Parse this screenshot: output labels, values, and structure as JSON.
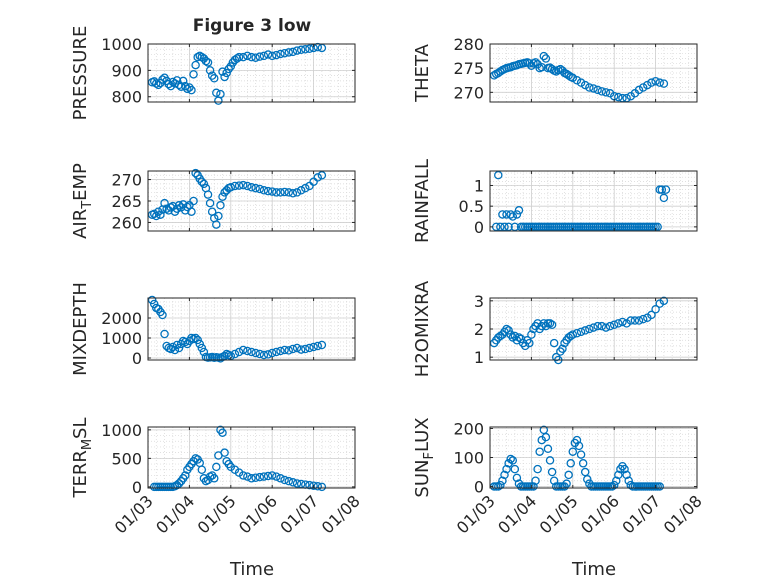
{
  "figure": {
    "title": "Figure 3 low",
    "xlabel": "Time",
    "xtick_labels": [
      "01/03",
      "01/04",
      "01/05",
      "01/06",
      "01/07",
      "01/08"
    ],
    "marker_color": "#0072BD"
  },
  "chart_data": [
    {
      "type": "scatter",
      "ylabel": "PRESSURE",
      "ylim": [
        780,
        1000
      ],
      "yticks": [
        800,
        900,
        1000
      ],
      "xlim": [
        3,
        8
      ],
      "x": [
        3.1,
        3.15,
        3.2,
        3.25,
        3.3,
        3.35,
        3.4,
        3.45,
        3.5,
        3.55,
        3.6,
        3.65,
        3.7,
        3.75,
        3.8,
        3.85,
        3.9,
        3.95,
        4.0,
        4.05,
        4.1,
        4.15,
        4.2,
        4.25,
        4.3,
        4.35,
        4.4,
        4.45,
        4.5,
        4.55,
        4.6,
        4.65,
        4.7,
        4.75,
        4.8,
        4.85,
        4.9,
        4.95,
        5.0,
        5.05,
        5.1,
        5.15,
        5.2,
        5.3,
        5.4,
        5.5,
        5.6,
        5.7,
        5.8,
        5.9,
        6.0,
        6.1,
        6.2,
        6.3,
        6.4,
        6.5,
        6.6,
        6.7,
        6.8,
        6.9,
        7.0,
        7.1,
        7.2
      ],
      "y": [
        855,
        858,
        850,
        845,
        852,
        865,
        872,
        860,
        848,
        840,
        856,
        850,
        862,
        845,
        838,
        860,
        840,
        830,
        835,
        825,
        885,
        920,
        950,
        955,
        950,
        945,
        935,
        930,
        900,
        880,
        870,
        815,
        785,
        810,
        895,
        875,
        890,
        905,
        915,
        930,
        940,
        945,
        950,
        950,
        955,
        950,
        948,
        952,
        955,
        960,
        955,
        958,
        962,
        965,
        968,
        970,
        975,
        978,
        980,
        982,
        985,
        988,
        985
      ]
    },
    {
      "type": "scatter",
      "ylabel": "THETA",
      "ylim": [
        268,
        280
      ],
      "yticks": [
        270,
        275,
        280
      ],
      "xlim": [
        3,
        8
      ],
      "x": [
        3.1,
        3.15,
        3.2,
        3.25,
        3.3,
        3.35,
        3.4,
        3.45,
        3.5,
        3.55,
        3.6,
        3.65,
        3.7,
        3.75,
        3.8,
        3.85,
        3.9,
        3.95,
        4.0,
        4.05,
        4.1,
        4.15,
        4.2,
        4.25,
        4.3,
        4.35,
        4.4,
        4.45,
        4.5,
        4.55,
        4.6,
        4.65,
        4.7,
        4.75,
        4.8,
        4.85,
        4.9,
        4.95,
        5.0,
        5.1,
        5.2,
        5.3,
        5.4,
        5.5,
        5.6,
        5.7,
        5.8,
        5.9,
        6.0,
        6.1,
        6.2,
        6.3,
        6.4,
        6.5,
        6.6,
        6.7,
        6.8,
        6.9,
        7.0,
        7.1,
        7.2
      ],
      "y": [
        273.5,
        273.8,
        274.0,
        274.3,
        274.6,
        274.8,
        275.0,
        275.1,
        275.2,
        275.4,
        275.5,
        275.6,
        275.8,
        275.9,
        276.0,
        276.1,
        276.2,
        276.0,
        275.5,
        276.0,
        276.2,
        275.8,
        275.0,
        275.2,
        277.5,
        277.0,
        275.0,
        275.1,
        274.8,
        274.5,
        274.3,
        274.6,
        274.8,
        274.5,
        274.0,
        273.8,
        273.5,
        273.2,
        273.0,
        272.5,
        272.0,
        271.5,
        271.0,
        270.8,
        270.5,
        270.2,
        270.0,
        269.8,
        269.2,
        269.0,
        268.8,
        268.8,
        269.2,
        269.8,
        270.5,
        271.0,
        271.5,
        272.0,
        272.3,
        272.0,
        271.8
      ]
    },
    {
      "type": "scatter",
      "ylabel": "AIR_TEMP",
      "ylim": [
        258,
        272
      ],
      "yticks": [
        260,
        265,
        270
      ],
      "xlim": [
        3,
        8
      ],
      "x": [
        3.1,
        3.15,
        3.2,
        3.25,
        3.3,
        3.35,
        3.4,
        3.45,
        3.5,
        3.55,
        3.6,
        3.65,
        3.7,
        3.75,
        3.8,
        3.85,
        3.9,
        3.95,
        4.0,
        4.05,
        4.1,
        4.15,
        4.2,
        4.25,
        4.3,
        4.35,
        4.4,
        4.45,
        4.5,
        4.55,
        4.6,
        4.65,
        4.7,
        4.75,
        4.8,
        4.85,
        4.9,
        4.95,
        5.0,
        5.1,
        5.2,
        5.3,
        5.4,
        5.5,
        5.6,
        5.7,
        5.8,
        5.9,
        6.0,
        6.1,
        6.2,
        6.3,
        6.4,
        6.5,
        6.6,
        6.7,
        6.8,
        6.9,
        7.0,
        7.1,
        7.2
      ],
      "y": [
        261.8,
        262.0,
        261.5,
        262.5,
        261.8,
        263.0,
        264.5,
        263.2,
        262.8,
        263.5,
        263.8,
        262.5,
        263.2,
        264.0,
        263.5,
        264.2,
        262.8,
        263.6,
        264.0,
        262.5,
        265.0,
        271.5,
        271.0,
        270.2,
        269.5,
        269.0,
        268.0,
        266.5,
        264.5,
        262.5,
        261.0,
        259.5,
        261.5,
        264.0,
        266.0,
        267.0,
        267.5,
        268.0,
        268.2,
        268.5,
        268.6,
        268.7,
        268.5,
        268.2,
        268.0,
        267.8,
        267.5,
        267.3,
        267.2,
        267.0,
        267.0,
        267.1,
        267.0,
        266.8,
        267.0,
        267.5,
        268.0,
        268.5,
        269.5,
        270.5,
        271.0
      ]
    },
    {
      "type": "scatter",
      "ylabel": "RAINFALL",
      "ylim": [
        -0.1,
        1.35
      ],
      "yticks": [
        0,
        0.5,
        1
      ],
      "ytick_labels": [
        "0",
        "0.5",
        "1"
      ],
      "xlim": [
        3,
        8
      ],
      "x": [
        3.15,
        3.2,
        3.25,
        3.3,
        3.35,
        3.4,
        3.45,
        3.5,
        3.55,
        3.6,
        3.65,
        3.7,
        3.75,
        3.8,
        3.85,
        3.9,
        3.95,
        4.0,
        4.05,
        4.1,
        4.15,
        4.2,
        4.25,
        4.3,
        4.35,
        4.4,
        4.45,
        4.5,
        4.55,
        4.6,
        4.65,
        4.7,
        4.75,
        4.8,
        4.85,
        4.9,
        4.95,
        5.0,
        5.05,
        5.1,
        5.15,
        5.2,
        5.25,
        5.3,
        5.35,
        5.4,
        5.45,
        5.5,
        5.55,
        5.6,
        5.65,
        5.7,
        5.75,
        5.8,
        5.85,
        5.9,
        5.95,
        6.0,
        6.05,
        6.1,
        6.15,
        6.2,
        6.25,
        6.3,
        6.35,
        6.4,
        6.45,
        6.5,
        6.55,
        6.6,
        6.65,
        6.7,
        6.75,
        6.8,
        6.85,
        6.9,
        6.95,
        7.0,
        7.05,
        7.1,
        7.15,
        7.2,
        7.25
      ],
      "y": [
        0,
        1.25,
        0,
        0.3,
        0,
        0.3,
        0,
        0.3,
        0.25,
        0,
        0.3,
        0.4,
        0,
        0,
        0,
        0,
        0,
        0,
        0,
        0,
        0,
        0,
        0,
        0,
        0,
        0,
        0,
        0,
        0,
        0,
        0,
        0,
        0,
        0,
        0,
        0,
        0,
        0,
        0,
        0,
        0,
        0,
        0,
        0,
        0,
        0,
        0,
        0,
        0,
        0,
        0,
        0,
        0,
        0,
        0,
        0,
        0,
        0,
        0,
        0,
        0,
        0,
        0,
        0,
        0,
        0,
        0,
        0,
        0,
        0,
        0,
        0,
        0,
        0,
        0,
        0,
        0,
        0,
        0,
        0.9,
        0.9,
        0.7,
        0.9
      ]
    },
    {
      "type": "scatter",
      "ylabel": "MIXDEPTH",
      "ylim": [
        -100,
        3000
      ],
      "yticks": [
        0,
        1000,
        2000
      ],
      "xlim": [
        3,
        8
      ],
      "x": [
        3.1,
        3.15,
        3.2,
        3.25,
        3.3,
        3.35,
        3.4,
        3.45,
        3.5,
        3.55,
        3.6,
        3.65,
        3.7,
        3.75,
        3.8,
        3.85,
        3.9,
        3.95,
        4.0,
        4.05,
        4.1,
        4.15,
        4.2,
        4.25,
        4.3,
        4.35,
        4.4,
        4.45,
        4.5,
        4.55,
        4.6,
        4.65,
        4.7,
        4.75,
        4.8,
        4.85,
        4.9,
        4.95,
        5.0,
        5.1,
        5.2,
        5.3,
        5.4,
        5.5,
        5.6,
        5.7,
        5.8,
        5.9,
        6.0,
        6.1,
        6.2,
        6.3,
        6.4,
        6.5,
        6.6,
        6.7,
        6.8,
        6.9,
        7.0,
        7.1,
        7.2
      ],
      "y": [
        2900,
        2700,
        2500,
        2450,
        2300,
        2150,
        1200,
        600,
        500,
        450,
        550,
        400,
        650,
        500,
        700,
        850,
        800,
        700,
        850,
        1000,
        950,
        1000,
        900,
        700,
        500,
        300,
        50,
        20,
        30,
        50,
        10,
        40,
        20,
        -20,
        50,
        100,
        200,
        150,
        100,
        200,
        300,
        400,
        350,
        300,
        250,
        200,
        150,
        180,
        250,
        300,
        350,
        400,
        380,
        450,
        500,
        420,
        450,
        500,
        550,
        600,
        650
      ]
    },
    {
      "type": "scatter",
      "ylabel": "H2OMIXRA",
      "ylim": [
        0.9,
        3.1
      ],
      "yticks": [
        1,
        2,
        3
      ],
      "xlim": [
        3,
        8
      ],
      "x": [
        3.1,
        3.15,
        3.2,
        3.25,
        3.3,
        3.35,
        3.4,
        3.45,
        3.5,
        3.55,
        3.6,
        3.65,
        3.7,
        3.75,
        3.8,
        3.85,
        3.9,
        3.95,
        4.0,
        4.05,
        4.1,
        4.15,
        4.2,
        4.25,
        4.3,
        4.35,
        4.4,
        4.45,
        4.5,
        4.55,
        4.6,
        4.65,
        4.7,
        4.75,
        4.8,
        4.85,
        4.9,
        4.95,
        5.0,
        5.1,
        5.2,
        5.3,
        5.4,
        5.5,
        5.6,
        5.7,
        5.8,
        5.9,
        6.0,
        6.1,
        6.2,
        6.3,
        6.4,
        6.5,
        6.6,
        6.7,
        6.8,
        6.9,
        7.0,
        7.1,
        7.2
      ],
      "y": [
        1.5,
        1.6,
        1.7,
        1.75,
        1.8,
        1.9,
        2.0,
        1.95,
        1.8,
        1.7,
        1.75,
        1.6,
        1.7,
        1.65,
        1.5,
        1.4,
        1.6,
        1.5,
        1.8,
        2.0,
        2.1,
        2.2,
        2.0,
        2.1,
        2.2,
        2.1,
        2.2,
        2.2,
        2.15,
        1.5,
        1.0,
        0.9,
        1.2,
        1.3,
        1.5,
        1.6,
        1.7,
        1.75,
        1.8,
        1.85,
        1.9,
        1.95,
        2.0,
        2.05,
        2.1,
        2.1,
        2.05,
        2.1,
        2.15,
        2.2,
        2.25,
        2.2,
        2.3,
        2.3,
        2.3,
        2.35,
        2.4,
        2.5,
        2.7,
        2.9,
        3.0
      ]
    },
    {
      "type": "scatter",
      "ylabel": "TERR_MSL",
      "ylim": [
        -20,
        1050
      ],
      "yticks": [
        0,
        500,
        1000
      ],
      "xlim": [
        3,
        8
      ],
      "x": [
        3.15,
        3.2,
        3.25,
        3.3,
        3.35,
        3.4,
        3.45,
        3.5,
        3.55,
        3.6,
        3.65,
        3.7,
        3.75,
        3.8,
        3.85,
        3.9,
        3.95,
        4.0,
        4.05,
        4.1,
        4.15,
        4.2,
        4.25,
        4.3,
        4.35,
        4.4,
        4.45,
        4.5,
        4.55,
        4.6,
        4.65,
        4.7,
        4.75,
        4.8,
        4.85,
        4.9,
        4.95,
        5.0,
        5.1,
        5.2,
        5.3,
        5.4,
        5.5,
        5.6,
        5.7,
        5.8,
        5.9,
        6.0,
        6.1,
        6.2,
        6.3,
        6.4,
        6.5,
        6.6,
        6.7,
        6.8,
        6.9,
        7.0,
        7.1,
        7.2
      ],
      "y": [
        0,
        0,
        0,
        0,
        0,
        0,
        0,
        0,
        0,
        0,
        10,
        30,
        60,
        100,
        150,
        200,
        300,
        350,
        400,
        450,
        500,
        480,
        420,
        300,
        150,
        100,
        120,
        180,
        200,
        150,
        350,
        550,
        1000,
        950,
        600,
        450,
        400,
        350,
        300,
        250,
        200,
        180,
        150,
        160,
        170,
        180,
        190,
        200,
        180,
        150,
        120,
        100,
        80,
        60,
        50,
        40,
        30,
        20,
        10,
        0
      ]
    },
    {
      "type": "scatter",
      "ylabel": "SUN_FLUX",
      "ylim": [
        -5,
        205
      ],
      "yticks": [
        0,
        100,
        200
      ],
      "xlim": [
        3,
        8
      ],
      "x": [
        3.1,
        3.15,
        3.2,
        3.25,
        3.3,
        3.35,
        3.4,
        3.45,
        3.5,
        3.55,
        3.6,
        3.65,
        3.7,
        3.75,
        3.8,
        3.85,
        3.9,
        3.95,
        4.0,
        4.05,
        4.1,
        4.15,
        4.2,
        4.25,
        4.3,
        4.35,
        4.4,
        4.45,
        4.5,
        4.55,
        4.6,
        4.65,
        4.7,
        4.75,
        4.8,
        4.85,
        4.9,
        4.95,
        5.0,
        5.05,
        5.1,
        5.15,
        5.2,
        5.25,
        5.3,
        5.35,
        5.4,
        5.45,
        5.5,
        5.55,
        5.6,
        5.65,
        5.7,
        5.75,
        5.8,
        5.85,
        5.9,
        5.95,
        6.0,
        6.05,
        6.1,
        6.15,
        6.2,
        6.25,
        6.3,
        6.35,
        6.4,
        6.45,
        6.5,
        6.55,
        6.6,
        6.65,
        6.7,
        6.75,
        6.8,
        6.85,
        6.9,
        6.95,
        7.0,
        7.05,
        7.1
      ],
      "y": [
        0,
        0,
        0,
        5,
        20,
        40,
        60,
        80,
        95,
        90,
        60,
        30,
        10,
        0,
        0,
        0,
        0,
        0,
        0,
        0,
        20,
        60,
        120,
        160,
        195,
        170,
        130,
        90,
        50,
        20,
        0,
        0,
        0,
        0,
        0,
        10,
        40,
        80,
        120,
        150,
        160,
        140,
        110,
        80,
        50,
        25,
        10,
        0,
        0,
        0,
        0,
        0,
        0,
        0,
        0,
        0,
        0,
        0,
        5,
        20,
        40,
        60,
        70,
        60,
        40,
        20,
        5,
        0,
        0,
        0,
        0,
        0,
        0,
        0,
        0,
        0,
        0,
        0,
        0,
        0,
        0
      ]
    }
  ]
}
